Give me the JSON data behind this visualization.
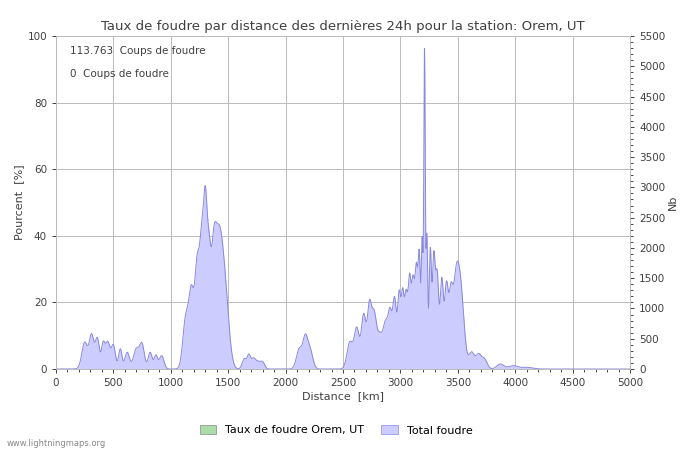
{
  "title": "Taux de foudre par distance des dernières 24h pour la station: Orem, UT",
  "xlabel": "Distance  [km]",
  "ylabel_left": "Pourcent  [%]",
  "ylabel_right": "Nb",
  "annotation_line1": "113.763  Coups de foudre",
  "annotation_line2": "0  Coups de foudre",
  "legend_label1": "Taux de foudre Orem, UT",
  "legend_label2": "Total foudre",
  "watermark": "www.lightningmaps.org",
  "xlim": [
    0,
    5000
  ],
  "ylim_left": [
    0,
    100
  ],
  "ylim_right": [
    0,
    5500
  ],
  "xticks": [
    0,
    500,
    1000,
    1500,
    2000,
    2500,
    3000,
    3500,
    4000,
    4500,
    5000
  ],
  "yticks_left": [
    0,
    20,
    40,
    60,
    80,
    100
  ],
  "yticks_right": [
    0,
    500,
    1000,
    1500,
    2000,
    2500,
    3000,
    3500,
    4000,
    4500,
    5000,
    5500
  ],
  "fill_color_green": "#aaddaa",
  "fill_color_blue": "#ccccff",
  "line_color": "#8888dd",
  "bg_color": "#ffffff",
  "grid_color": "#bbbbbb",
  "text_color": "#404040",
  "title_fontsize": 9.5,
  "label_fontsize": 8,
  "tick_fontsize": 7.5,
  "annot_fontsize": 7.5
}
